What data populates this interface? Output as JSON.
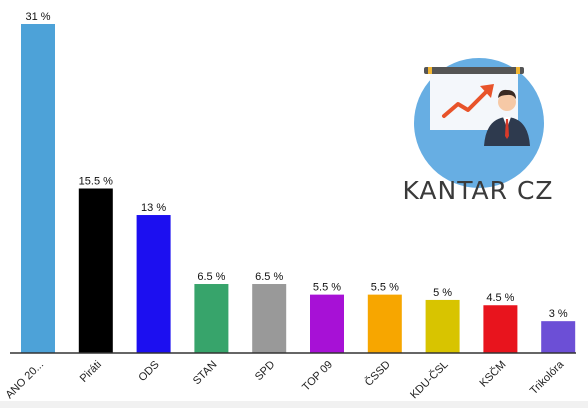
{
  "brand": {
    "name": "KANTAR CZ",
    "icon": "presenter-chart-icon"
  },
  "chart_data": {
    "type": "bar",
    "categories": [
      "ANO 20...",
      "Piráti",
      "ODS",
      "STAN",
      "SPD",
      "TOP 09",
      "ČSSD",
      "KDU-ČSL",
      "KSČM",
      "Trikolóra"
    ],
    "values": [
      31,
      15.5,
      13,
      6.5,
      6.5,
      5.5,
      5.5,
      5,
      4.5,
      3
    ],
    "labels": [
      "31 %",
      "15.5 %",
      "13 %",
      "6.5 %",
      "6.5 %",
      "5.5 %",
      "5.5 %",
      "5 %",
      "4.5 %",
      "3 %"
    ],
    "colors": [
      "#4da2d8",
      "#000000",
      "#1c0ff0",
      "#37a46b",
      "#999999",
      "#a711d6",
      "#f7a600",
      "#d8c400",
      "#e8141d",
      "#6c4fd6"
    ],
    "ylim": [
      0,
      31
    ],
    "grid": false,
    "legend": "none"
  }
}
